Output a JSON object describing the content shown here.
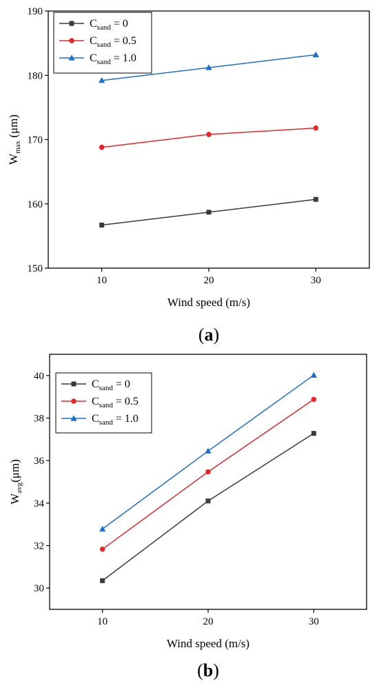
{
  "colors": {
    "black_series": "#3a3a3a",
    "red_series": "#e8262a",
    "blue_series": "#1a6fd0"
  },
  "chart_data": [
    {
      "type": "line",
      "panel_label": {
        "open": "(",
        "letter": "a",
        "close": ")"
      },
      "xlabel": "Wind speed (m/s)",
      "ylabel": {
        "base": "W",
        "sub": "max",
        "unit": " (μm)"
      },
      "x": [
        10,
        20,
        30
      ],
      "xlim": [
        5,
        35
      ],
      "ylim": [
        150,
        190
      ],
      "xticks": [
        "10",
        "20",
        "30"
      ],
      "yticks": [
        "150",
        "160",
        "170",
        "180",
        "190"
      ],
      "legend_position": "top-left",
      "series": [
        {
          "name": {
            "base": "C",
            "sub": "sand",
            "tail": " = 0"
          },
          "marker": "square",
          "color": "#3a3a3a",
          "values": [
            156.7,
            158.7,
            160.7
          ]
        },
        {
          "name": {
            "base": "C",
            "sub": "sand",
            "tail": " = 0.5"
          },
          "marker": "circle",
          "color": "#e8262a",
          "values": [
            168.8,
            170.8,
            171.8
          ]
        },
        {
          "name": {
            "base": "C",
            "sub": "sand",
            "tail": " = 1.0"
          },
          "marker": "triangle",
          "color": "#1a6fd0",
          "values": [
            179.2,
            181.2,
            183.2
          ]
        }
      ]
    },
    {
      "type": "line",
      "panel_label": {
        "open": "(",
        "letter": "b",
        "close": ")"
      },
      "xlabel": "Wind speed (m/s)",
      "ylabel": {
        "base": "W",
        "sub": "avg",
        "unit": "(μm)"
      },
      "x": [
        10,
        20,
        30
      ],
      "xlim": [
        5,
        35
      ],
      "ylim": [
        29,
        41
      ],
      "xticks": [
        "10",
        "20",
        "30"
      ],
      "yticks": [
        "30",
        "32",
        "34",
        "36",
        "38",
        "40"
      ],
      "legend_position": "top-left",
      "series": [
        {
          "name": {
            "base": "C",
            "sub": "sand",
            "tail": " = 0"
          },
          "marker": "square",
          "color": "#3a3a3a",
          "values": [
            30.35,
            34.1,
            37.28
          ]
        },
        {
          "name": {
            "base": "C",
            "sub": "sand",
            "tail": " = 0.5"
          },
          "marker": "circle",
          "color": "#e8262a",
          "values": [
            31.83,
            35.47,
            38.88
          ]
        },
        {
          "name": {
            "base": "C",
            "sub": "sand",
            "tail": " = 1.0"
          },
          "marker": "triangle",
          "color": "#1a6fd0",
          "values": [
            32.78,
            36.45,
            40.02
          ]
        }
      ]
    }
  ]
}
